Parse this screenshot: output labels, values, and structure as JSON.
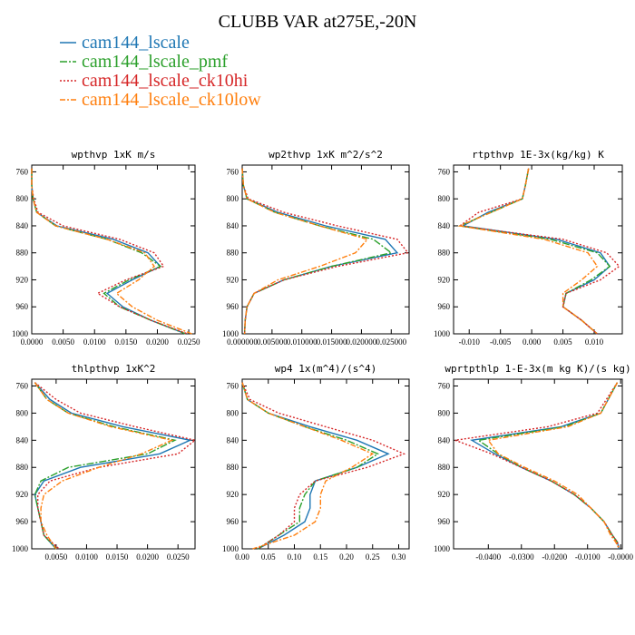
{
  "title": "CLUBB VAR at275E,-20N",
  "legend": [
    {
      "name": "cam144_lscale",
      "color": "#1f77b4",
      "dash": ""
    },
    {
      "name": "cam144_lscale_pmf",
      "color": "#2ca02c",
      "dash": "8 2 2 2"
    },
    {
      "name": "cam144_lscale_ck10hi",
      "color": "#d62728",
      "dash": "2 2"
    },
    {
      "name": "cam144_lscale_ck10low",
      "color": "#ff7f0e",
      "dash": "6 2 2 2"
    }
  ],
  "chart_data": [
    {
      "type": "line",
      "title": "wpthvp  1xK m/s",
      "y": [
        755,
        780,
        800,
        820,
        840,
        860,
        880,
        900,
        920,
        940,
        960,
        980,
        1000
      ],
      "ylim": [
        750,
        1000
      ],
      "y_inverted": true,
      "yticks": [
        760,
        800,
        840,
        880,
        920,
        960,
        1000
      ],
      "xlim": [
        0,
        0.026
      ],
      "xticks": [
        {
          "value": 0,
          "label": "0.0000"
        },
        {
          "value": 0.005,
          "label": "0.0050"
        },
        {
          "value": 0.01,
          "label": "0.0100"
        },
        {
          "value": 0.015,
          "label": "0.0150"
        },
        {
          "value": 0.02,
          "label": "0.0200"
        },
        {
          "value": 0.025,
          "label": "0.0250"
        }
      ],
      "series": [
        {
          "color": "#1f77b4",
          "dash": "",
          "values": [
            0,
            0,
            0.0002,
            0.0008,
            0.004,
            0.013,
            0.0185,
            0.0205,
            0.016,
            0.012,
            0.0145,
            0.019,
            0.0245
          ]
        },
        {
          "color": "#2ca02c",
          "dash": "8 2 2 2",
          "values": [
            0,
            0,
            0.0002,
            0.0008,
            0.0038,
            0.012,
            0.0175,
            0.0205,
            0.0155,
            0.0115,
            0.014,
            0.019,
            0.0245
          ]
        },
        {
          "color": "#d62728",
          "dash": "2 2",
          "values": [
            0,
            0,
            0.0003,
            0.001,
            0.005,
            0.014,
            0.0195,
            0.021,
            0.015,
            0.0105,
            0.014,
            0.019,
            0.0248
          ]
        },
        {
          "color": "#ff7f0e",
          "dash": "6 2 2 2",
          "values": [
            0,
            0,
            0.0002,
            0.0008,
            0.0038,
            0.012,
            0.018,
            0.0195,
            0.017,
            0.0135,
            0.016,
            0.02,
            0.0255
          ]
        }
      ]
    },
    {
      "type": "line",
      "title": "wp2thvp  1xK m^2/s^2",
      "y": [
        755,
        780,
        800,
        820,
        840,
        860,
        880,
        900,
        920,
        940,
        960,
        980,
        1000
      ],
      "ylim": [
        750,
        1000
      ],
      "y_inverted": true,
      "yticks": [
        760,
        800,
        840,
        880,
        920,
        960,
        1000
      ],
      "xlim": [
        0,
        0.028
      ],
      "xticks": [
        {
          "value": 0,
          "label": "0.000000"
        },
        {
          "value": 0.005,
          "label": "0.005000"
        },
        {
          "value": 0.01,
          "label": "0.010000"
        },
        {
          "value": 0.015,
          "label": "0.015000"
        },
        {
          "value": 0.02,
          "label": "0.020000"
        },
        {
          "value": 0.025,
          "label": "0.025000"
        }
      ],
      "series": [
        {
          "color": "#1f77b4",
          "dash": "",
          "values": [
            0,
            0.0002,
            0.0008,
            0.006,
            0.014,
            0.024,
            0.026,
            0.015,
            0.007,
            0.002,
            0.0008,
            0.0005,
            0.0004
          ]
        },
        {
          "color": "#2ca02c",
          "dash": "8 2 2 2",
          "values": [
            0,
            0.0002,
            0.0008,
            0.0055,
            0.013,
            0.022,
            0.025,
            0.015,
            0.007,
            0.002,
            0.0008,
            0.0005,
            0.0004
          ]
        },
        {
          "color": "#d62728",
          "dash": "2 2",
          "values": [
            0,
            0.0002,
            0.001,
            0.007,
            0.016,
            0.026,
            0.0278,
            0.016,
            0.007,
            0.002,
            0.0008,
            0.0005,
            0.0004
          ]
        },
        {
          "color": "#ff7f0e",
          "dash": "6 2 2 2",
          "values": [
            0,
            0.0002,
            0.0008,
            0.0055,
            0.013,
            0.021,
            0.019,
            0.013,
            0.006,
            0.002,
            0.0008,
            0.0005,
            0.0004
          ]
        }
      ]
    },
    {
      "type": "line",
      "title": "rtpthvp  1E-3x(kg/kg) K",
      "y": [
        755,
        780,
        800,
        820,
        840,
        860,
        880,
        900,
        920,
        940,
        960,
        980,
        1000
      ],
      "ylim": [
        750,
        1000
      ],
      "y_inverted": true,
      "yticks": [
        760,
        800,
        840,
        880,
        920,
        960,
        1000
      ],
      "xlim": [
        -0.0125,
        0.0145
      ],
      "xticks": [
        {
          "value": -0.01,
          "label": "-0.010"
        },
        {
          "value": -0.005,
          "label": "-0.005"
        },
        {
          "value": 0,
          "label": "0.000"
        },
        {
          "value": 0.005,
          "label": "0.005"
        },
        {
          "value": 0.01,
          "label": "0.010"
        }
      ],
      "series": [
        {
          "color": "#1f77b4",
          "dash": "",
          "values": [
            -0.0005,
            -0.001,
            -0.0015,
            -0.007,
            -0.011,
            0.004,
            0.011,
            0.0125,
            0.01,
            0.0055,
            0.005,
            0.008,
            0.0105
          ]
        },
        {
          "color": "#2ca02c",
          "dash": "8 2 2 2",
          "values": [
            -0.0005,
            -0.001,
            -0.0015,
            -0.0065,
            -0.0115,
            0.003,
            0.0105,
            0.0125,
            0.0095,
            0.0055,
            0.005,
            0.008,
            0.0105
          ]
        },
        {
          "color": "#d62728",
          "dash": "2 2",
          "values": [
            -0.0005,
            -0.001,
            -0.0015,
            -0.0085,
            -0.0115,
            0.005,
            0.012,
            0.014,
            0.011,
            0.0055,
            0.005,
            0.008,
            0.0105
          ]
        },
        {
          "color": "#ff7f0e",
          "dash": "6 2 2 2",
          "values": [
            -0.0005,
            -0.001,
            -0.0015,
            -0.0065,
            -0.0115,
            0.002,
            0.009,
            0.0105,
            0.008,
            0.005,
            0.005,
            0.008,
            0.0105
          ]
        }
      ]
    },
    {
      "type": "line",
      "title": "thlpthvp  1xK^2",
      "y": [
        755,
        780,
        800,
        820,
        840,
        860,
        880,
        900,
        920,
        940,
        960,
        980,
        1000
      ],
      "ylim": [
        750,
        1000
      ],
      "y_inverted": true,
      "yticks": [
        760,
        800,
        840,
        880,
        920,
        960,
        1000
      ],
      "xlim": [
        0.001,
        0.0278
      ],
      "xticks": [
        {
          "value": 0.005,
          "label": "0.0050"
        },
        {
          "value": 0.01,
          "label": "0.0100"
        },
        {
          "value": 0.015,
          "label": "0.0150"
        },
        {
          "value": 0.02,
          "label": "0.0200"
        },
        {
          "value": 0.025,
          "label": "0.0250"
        }
      ],
      "series": [
        {
          "color": "#1f77b4",
          "dash": "",
          "values": [
            0.0015,
            0.004,
            0.0075,
            0.016,
            0.027,
            0.022,
            0.009,
            0.003,
            0.0015,
            0.002,
            0.0025,
            0.003,
            0.005
          ]
        },
        {
          "color": "#2ca02c",
          "dash": "8 2 2 2",
          "values": [
            0.0015,
            0.0035,
            0.007,
            0.0145,
            0.0245,
            0.02,
            0.007,
            0.0025,
            0.0015,
            0.002,
            0.0025,
            0.003,
            0.005
          ]
        },
        {
          "color": "#d62728",
          "dash": "2 2",
          "values": [
            0.0015,
            0.005,
            0.009,
            0.018,
            0.0278,
            0.025,
            0.012,
            0.004,
            0.002,
            0.002,
            0.0025,
            0.003,
            0.0055
          ]
        },
        {
          "color": "#ff7f0e",
          "dash": "6 2 2 2",
          "values": [
            0.0015,
            0.0035,
            0.007,
            0.014,
            0.024,
            0.019,
            0.012,
            0.006,
            0.003,
            0.0025,
            0.0025,
            0.0035,
            0.005
          ]
        }
      ]
    },
    {
      "type": "line",
      "title": "wp4  1x(m^4)/(s^4)",
      "y": [
        755,
        780,
        800,
        820,
        840,
        860,
        880,
        900,
        920,
        940,
        960,
        980,
        1000
      ],
      "ylim": [
        750,
        1000
      ],
      "y_inverted": true,
      "yticks": [
        760,
        800,
        840,
        880,
        920,
        960,
        1000
      ],
      "xlim": [
        0,
        0.32
      ],
      "xticks": [
        {
          "value": 0,
          "label": "0.00"
        },
        {
          "value": 0.05,
          "label": "0.05"
        },
        {
          "value": 0.1,
          "label": "0.10"
        },
        {
          "value": 0.15,
          "label": "0.15"
        },
        {
          "value": 0.2,
          "label": "0.20"
        },
        {
          "value": 0.25,
          "label": "0.25"
        },
        {
          "value": 0.3,
          "label": "0.30"
        }
      ],
      "series": [
        {
          "color": "#1f77b4",
          "dash": "",
          "values": [
            0,
            0.01,
            0.05,
            0.13,
            0.22,
            0.28,
            0.22,
            0.14,
            0.13,
            0.13,
            0.12,
            0.08,
            0.03
          ]
        },
        {
          "color": "#2ca02c",
          "dash": "8 2 2 2",
          "values": [
            0,
            0.01,
            0.05,
            0.12,
            0.2,
            0.26,
            0.22,
            0.14,
            0.12,
            0.11,
            0.11,
            0.07,
            0.03
          ]
        },
        {
          "color": "#d62728",
          "dash": "2 2",
          "values": [
            0,
            0.015,
            0.07,
            0.16,
            0.25,
            0.31,
            0.24,
            0.14,
            0.11,
            0.1,
            0.1,
            0.07,
            0.03
          ]
        },
        {
          "color": "#ff7f0e",
          "dash": "6 2 2 2",
          "values": [
            0,
            0.01,
            0.05,
            0.12,
            0.19,
            0.25,
            0.21,
            0.16,
            0.15,
            0.15,
            0.14,
            0.1,
            0.02
          ]
        }
      ]
    },
    {
      "type": "line",
      "title": "wprtpthlp  1-E-3x(m kg K)/(s kg)",
      "y": [
        755,
        800,
        820,
        840,
        860,
        880,
        900,
        920,
        940,
        960,
        980,
        990,
        1000
      ],
      "ylim": [
        750,
        1000
      ],
      "y_inverted": true,
      "yticks": [
        760,
        800,
        840,
        880,
        920,
        960,
        1000
      ],
      "xlim": [
        -0.0505,
        0.0005
      ],
      "xticks": [
        {
          "value": -0.04,
          "label": "-0.0400"
        },
        {
          "value": -0.03,
          "label": "-0.0300"
        },
        {
          "value": -0.02,
          "label": "-0.0200"
        },
        {
          "value": -0.01,
          "label": "-0.0100"
        },
        {
          "value": 0,
          "label": "-0.0000"
        }
      ],
      "series": [
        {
          "color": "#1f77b4",
          "dash": "",
          "values": [
            -0.001,
            -0.006,
            -0.018,
            -0.045,
            -0.038,
            -0.03,
            -0.021,
            -0.014,
            -0.009,
            -0.005,
            -0.0025,
            -0.001,
            -0.0005
          ]
        },
        {
          "color": "#2ca02c",
          "dash": "8 2 2 2",
          "values": [
            -0.001,
            -0.006,
            -0.017,
            -0.043,
            -0.037,
            -0.03,
            -0.021,
            -0.014,
            -0.009,
            -0.005,
            -0.0025,
            -0.001,
            -0.0005
          ]
        },
        {
          "color": "#d62728",
          "dash": "2 2",
          "values": [
            -0.001,
            -0.007,
            -0.022,
            -0.05,
            -0.039,
            -0.03,
            -0.021,
            -0.014,
            -0.009,
            -0.005,
            -0.0025,
            -0.001,
            -0.0005
          ]
        },
        {
          "color": "#ff7f0e",
          "dash": "6 2 2 2",
          "values": [
            -0.001,
            -0.006,
            -0.016,
            -0.04,
            -0.037,
            -0.029,
            -0.02,
            -0.013,
            -0.009,
            -0.005,
            -0.003,
            -0.0015,
            -0.0005
          ]
        }
      ]
    }
  ]
}
